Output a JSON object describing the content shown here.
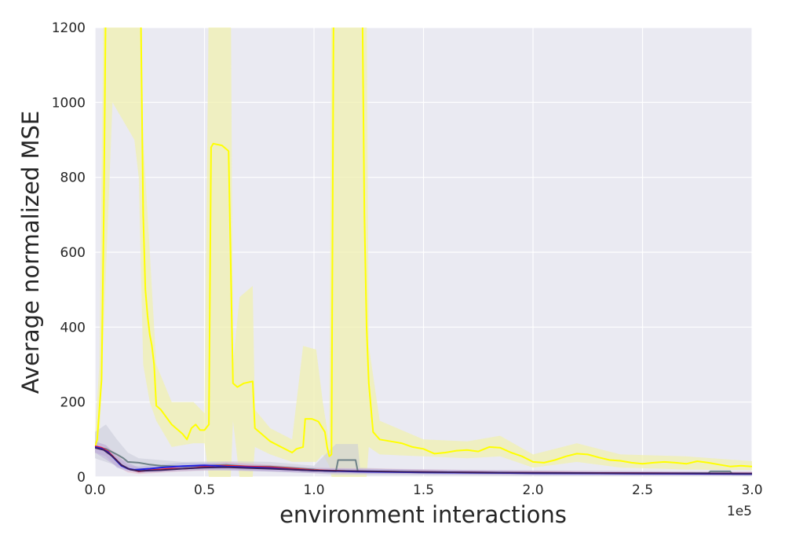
{
  "chart_data": {
    "type": "line",
    "title": "",
    "xlabel": "environment interactions",
    "ylabel": "Average normalized MSE",
    "x_offset_label": "1e5",
    "xlim": [
      0,
      300000
    ],
    "ylim": [
      0,
      1200
    ],
    "x_ticks": [
      0,
      50000,
      100000,
      150000,
      200000,
      250000,
      300000
    ],
    "x_tick_labels": [
      "0.0",
      "0.5",
      "1.0",
      "1.5",
      "2.0",
      "2.5",
      "3.0"
    ],
    "y_ticks": [
      0,
      200,
      400,
      600,
      800,
      1000,
      1200
    ],
    "y_tick_labels": [
      "0",
      "200",
      "400",
      "600",
      "800",
      "1000",
      "1200"
    ],
    "grid": true,
    "background": "#eaeaf2",
    "series": [
      {
        "color": "#ffff00",
        "band_color": "#f0f0b0",
        "points": [
          [
            0,
            80
          ],
          [
            1000,
            100
          ],
          [
            2000,
            180
          ],
          [
            3000,
            260
          ],
          [
            4000,
            700
          ],
          [
            5000,
            1300
          ],
          [
            8000,
            1400
          ],
          [
            20000,
            1300
          ],
          [
            21000,
            1200
          ],
          [
            22000,
            700
          ],
          [
            23000,
            500
          ],
          [
            24000,
            430
          ],
          [
            25000,
            380
          ],
          [
            26000,
            350
          ],
          [
            27000,
            300
          ],
          [
            28000,
            190
          ],
          [
            30000,
            180
          ],
          [
            35000,
            140
          ],
          [
            40000,
            115
          ],
          [
            42000,
            100
          ],
          [
            44000,
            130
          ],
          [
            46000,
            140
          ],
          [
            48000,
            125
          ],
          [
            50000,
            125
          ],
          [
            52000,
            140
          ],
          [
            53000,
            880
          ],
          [
            54000,
            890
          ],
          [
            58000,
            885
          ],
          [
            61000,
            870
          ],
          [
            63000,
            250
          ],
          [
            65000,
            240
          ],
          [
            68000,
            250
          ],
          [
            72000,
            255
          ],
          [
            73000,
            130
          ],
          [
            75000,
            120
          ],
          [
            80000,
            95
          ],
          [
            85000,
            80
          ],
          [
            90000,
            65
          ],
          [
            92000,
            75
          ],
          [
            95000,
            80
          ],
          [
            96000,
            155
          ],
          [
            99000,
            155
          ],
          [
            102000,
            148
          ],
          [
            105000,
            120
          ],
          [
            106000,
            80
          ],
          [
            107000,
            55
          ],
          [
            108000,
            60
          ],
          [
            109000,
            1300
          ],
          [
            122000,
            1300
          ],
          [
            123000,
            700
          ],
          [
            124000,
            400
          ],
          [
            125000,
            250
          ],
          [
            127000,
            120
          ],
          [
            130000,
            100
          ],
          [
            135000,
            95
          ],
          [
            140000,
            90
          ],
          [
            145000,
            80
          ],
          [
            150000,
            75
          ],
          [
            155000,
            62
          ],
          [
            160000,
            65
          ],
          [
            165000,
            70
          ],
          [
            170000,
            72
          ],
          [
            175000,
            68
          ],
          [
            180000,
            80
          ],
          [
            185000,
            78
          ],
          [
            190000,
            65
          ],
          [
            195000,
            55
          ],
          [
            200000,
            40
          ],
          [
            205000,
            38
          ],
          [
            210000,
            45
          ],
          [
            215000,
            55
          ],
          [
            220000,
            62
          ],
          [
            225000,
            60
          ],
          [
            230000,
            52
          ],
          [
            235000,
            45
          ],
          [
            240000,
            43
          ],
          [
            245000,
            38
          ],
          [
            250000,
            35
          ],
          [
            255000,
            38
          ],
          [
            260000,
            40
          ],
          [
            265000,
            38
          ],
          [
            270000,
            35
          ],
          [
            275000,
            42
          ],
          [
            280000,
            38
          ],
          [
            285000,
            33
          ],
          [
            290000,
            28
          ],
          [
            295000,
            30
          ],
          [
            300000,
            28
          ]
        ],
        "band": [
          [
            0,
            60,
            110
          ],
          [
            2000,
            100,
            300
          ],
          [
            4000,
            400,
            1300
          ],
          [
            8000,
            1000,
            1400
          ],
          [
            18000,
            900,
            1400
          ],
          [
            20000,
            800,
            1400
          ],
          [
            22000,
            300,
            900
          ],
          [
            25000,
            200,
            600
          ],
          [
            28000,
            150,
            300
          ],
          [
            35000,
            80,
            200
          ],
          [
            45000,
            90,
            200
          ],
          [
            50000,
            90,
            170
          ],
          [
            52000,
            0,
            1300
          ],
          [
            62000,
            0,
            1300
          ],
          [
            63000,
            150,
            300
          ],
          [
            66000,
            0,
            480
          ],
          [
            72000,
            0,
            510
          ],
          [
            73000,
            80,
            180
          ],
          [
            80000,
            60,
            130
          ],
          [
            90000,
            40,
            100
          ],
          [
            95000,
            40,
            350
          ],
          [
            101000,
            40,
            340
          ],
          [
            104000,
            60,
            200
          ],
          [
            107000,
            30,
            90
          ],
          [
            108000,
            0,
            1300
          ],
          [
            124000,
            0,
            1300
          ],
          [
            125000,
            80,
            350
          ],
          [
            130000,
            60,
            150
          ],
          [
            150000,
            55,
            100
          ],
          [
            170000,
            50,
            95
          ],
          [
            185000,
            55,
            110
          ],
          [
            200000,
            25,
            60
          ],
          [
            220000,
            40,
            90
          ],
          [
            240000,
            25,
            60
          ],
          [
            270000,
            20,
            55
          ],
          [
            300000,
            18,
            42
          ]
        ]
      },
      {
        "color": "#6e8288",
        "band_color": "#c8cad8",
        "points": [
          [
            0,
            80
          ],
          [
            5000,
            75
          ],
          [
            10000,
            60
          ],
          [
            13000,
            50
          ],
          [
            15000,
            40
          ],
          [
            20000,
            38
          ],
          [
            25000,
            33
          ],
          [
            30000,
            30
          ],
          [
            40000,
            28
          ],
          [
            50000,
            30
          ],
          [
            60000,
            32
          ],
          [
            70000,
            28
          ],
          [
            80000,
            28
          ],
          [
            90000,
            24
          ],
          [
            100000,
            20
          ],
          [
            105000,
            16
          ],
          [
            110000,
            15
          ],
          [
            111000,
            45
          ],
          [
            119000,
            45
          ],
          [
            120000,
            15
          ],
          [
            130000,
            14
          ],
          [
            150000,
            12
          ],
          [
            200000,
            10
          ],
          [
            250000,
            9
          ],
          [
            280000,
            10
          ],
          [
            281000,
            15
          ],
          [
            290000,
            15
          ],
          [
            291000,
            8
          ],
          [
            300000,
            8
          ]
        ],
        "band": [
          [
            0,
            50,
            120
          ],
          [
            5000,
            40,
            140
          ],
          [
            10000,
            30,
            100
          ],
          [
            15000,
            20,
            65
          ],
          [
            20000,
            15,
            50
          ],
          [
            40000,
            15,
            40
          ],
          [
            60000,
            18,
            42
          ],
          [
            80000,
            14,
            40
          ],
          [
            100000,
            10,
            30
          ],
          [
            110000,
            5,
            88
          ],
          [
            120000,
            5,
            88
          ],
          [
            121000,
            5,
            25
          ],
          [
            150000,
            5,
            18
          ],
          [
            200000,
            4,
            15
          ],
          [
            300000,
            3,
            13
          ]
        ]
      },
      {
        "color": "#ff2020",
        "band_color": "#eab8c8",
        "points": [
          [
            0,
            82
          ],
          [
            3000,
            78
          ],
          [
            6000,
            68
          ],
          [
            9000,
            50
          ],
          [
            12000,
            32
          ],
          [
            15000,
            22
          ],
          [
            18000,
            18
          ],
          [
            20000,
            15
          ],
          [
            25000,
            18
          ],
          [
            30000,
            20
          ],
          [
            35000,
            22
          ],
          [
            40000,
            22
          ],
          [
            45000,
            24
          ],
          [
            50000,
            27
          ],
          [
            55000,
            30
          ],
          [
            60000,
            30
          ],
          [
            70000,
            28
          ],
          [
            80000,
            26
          ],
          [
            90000,
            22
          ],
          [
            100000,
            18
          ],
          [
            120000,
            15
          ],
          [
            150000,
            13
          ],
          [
            200000,
            11
          ],
          [
            250000,
            10
          ],
          [
            300000,
            9
          ]
        ],
        "band": [
          [
            0,
            65,
            95
          ],
          [
            5000,
            55,
            85
          ],
          [
            10000,
            28,
            60
          ],
          [
            15000,
            12,
            32
          ],
          [
            20000,
            8,
            25
          ],
          [
            40000,
            15,
            30
          ],
          [
            60000,
            20,
            40
          ],
          [
            100000,
            10,
            25
          ],
          [
            200000,
            5,
            16
          ],
          [
            300000,
            4,
            14
          ]
        ]
      },
      {
        "color": "#2020e0",
        "band_color": "#b0b0e0",
        "points": [
          [
            0,
            80
          ],
          [
            3000,
            76
          ],
          [
            6000,
            66
          ],
          [
            9000,
            48
          ],
          [
            12000,
            30
          ],
          [
            15000,
            22
          ],
          [
            18000,
            19
          ],
          [
            20000,
            20
          ],
          [
            25000,
            22
          ],
          [
            30000,
            25
          ],
          [
            35000,
            27
          ],
          [
            40000,
            29
          ],
          [
            45000,
            30
          ],
          [
            50000,
            31
          ],
          [
            55000,
            30
          ],
          [
            60000,
            28
          ],
          [
            70000,
            26
          ],
          [
            80000,
            24
          ],
          [
            90000,
            20
          ],
          [
            100000,
            17
          ],
          [
            120000,
            14
          ],
          [
            150000,
            12
          ],
          [
            200000,
            10
          ],
          [
            250000,
            9
          ],
          [
            300000,
            8
          ]
        ],
        "band": [
          [
            0,
            65,
            95
          ],
          [
            5000,
            55,
            85
          ],
          [
            10000,
            25,
            55
          ],
          [
            15000,
            15,
            32
          ],
          [
            20000,
            14,
            28
          ],
          [
            40000,
            20,
            38
          ],
          [
            60000,
            20,
            38
          ],
          [
            100000,
            10,
            24
          ],
          [
            200000,
            5,
            15
          ],
          [
            300000,
            4,
            13
          ]
        ]
      },
      {
        "color": "#3a2060",
        "band_color": "#c0b0d8",
        "points": [
          [
            0,
            78
          ],
          [
            4000,
            72
          ],
          [
            8000,
            55
          ],
          [
            12000,
            32
          ],
          [
            16000,
            20
          ],
          [
            20000,
            16
          ],
          [
            30000,
            18
          ],
          [
            40000,
            22
          ],
          [
            50000,
            25
          ],
          [
            60000,
            26
          ],
          [
            70000,
            24
          ],
          [
            80000,
            22
          ],
          [
            100000,
            17
          ],
          [
            150000,
            13
          ],
          [
            200000,
            11
          ],
          [
            300000,
            9
          ]
        ],
        "band": [
          [
            0,
            65,
            90
          ],
          [
            10000,
            28,
            55
          ],
          [
            20000,
            10,
            24
          ],
          [
            50000,
            18,
            32
          ],
          [
            100000,
            12,
            22
          ],
          [
            300000,
            5,
            13
          ]
        ]
      }
    ]
  }
}
